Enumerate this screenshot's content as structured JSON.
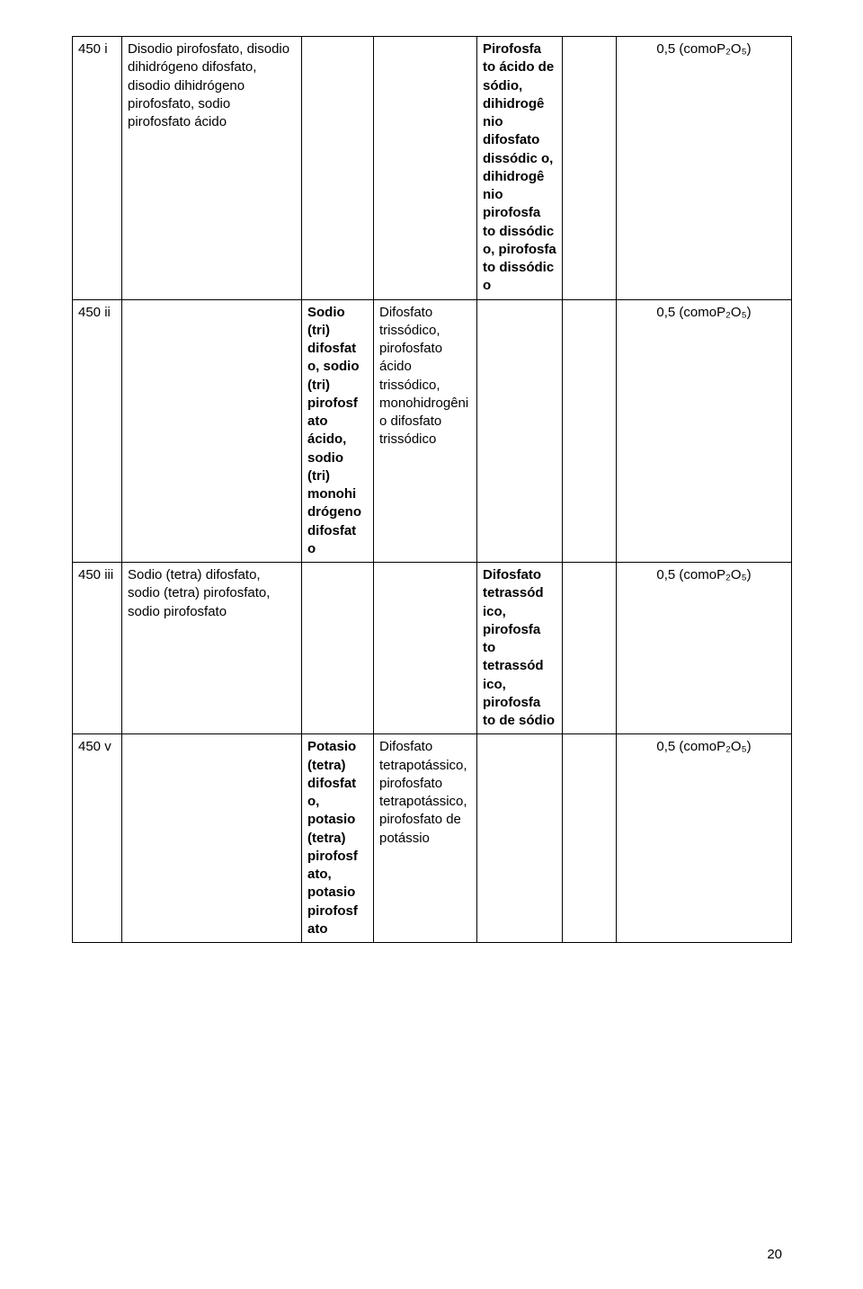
{
  "rows": [
    {
      "id": "450 i",
      "col2": "Disodio pirofosfato, disodio dihidrógeno difosfato, disodio dihidrógeno pirofosfato, sodio pirofosfato ácido",
      "col3": "",
      "col4": "",
      "col5_bold": "Pirofosfa to ácido de sódio, dihidrogê nio difosfato dissódic o, dihidrogê nio pirofosfa to dissódic o, pirofosfa to dissódic o",
      "col6": "",
      "col7": "0,5 (comoP₂O₅)"
    },
    {
      "id": "450 ii",
      "col2": "",
      "col3_bold": "Sodio (tri) difosfat o, sodio (tri) pirofosf ato ácido, sodio (tri) monohi drógeno difosfat o",
      "col4": "Difosfato trissódico, pirofosfato ácido trissódico, monohidrogênio difosfato trissódico",
      "col5": "",
      "col6": "",
      "col7": "0,5 (comoP₂O₅)"
    },
    {
      "id": "450 iii",
      "col2": "Sodio (tetra) difosfato, sodio (tetra) pirofosfato, sodio pirofosfato",
      "col3": "",
      "col4": "",
      "col5_bold": "Difosfato tetrassód ico, pirofosfa to tetrassód ico, pirofosfa to de sódio",
      "col6": "",
      "col7": "0,5 (comoP₂O₅)"
    },
    {
      "id": "450 v",
      "col2": "",
      "col3_bold": "Potasio (tetra) difosfat o, potasio (tetra) pirofosf ato, potasio pirofosf ato",
      "col4": "Difosfato tetrapotássico, pirofosfato tetrapotássico, pirofosfato de potássio",
      "col5": "",
      "col6": "",
      "col7": "0,5 (comoP₂O₅)"
    }
  ],
  "pageNumber": "20",
  "style": {
    "font_family": "Arial",
    "font_size_pt": 11,
    "border_color": "#000000",
    "background_color": "#ffffff",
    "text_color": "#000000"
  }
}
